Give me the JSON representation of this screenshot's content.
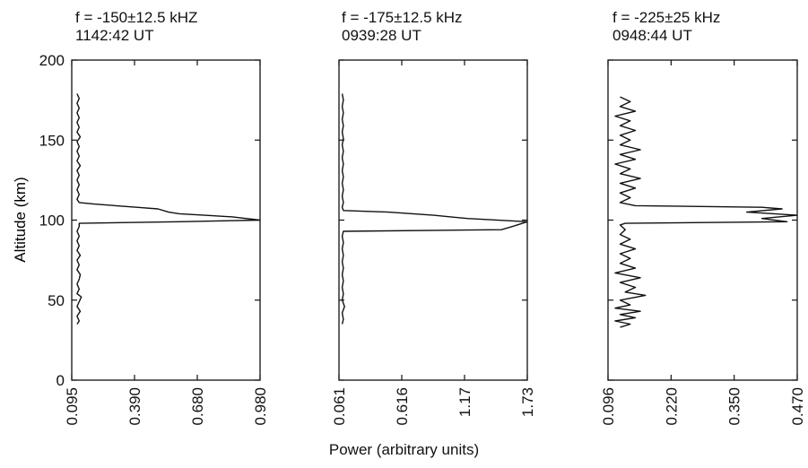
{
  "figure": {
    "ylabel": "Altitude (km)",
    "xlabel": "Power (arbitrary units)"
  },
  "chart_data": [
    {
      "type": "line",
      "title": "f = -150±12.5 kHZ",
      "subtitle": "1142:42 UT",
      "ylabel": "Altitude (km)",
      "xlabel": "Power (arbitrary units)",
      "ylim": [
        0,
        200
      ],
      "yticks": [
        "0",
        "50",
        "100",
        "150",
        "200"
      ],
      "xlim": [
        0.095,
        0.98
      ],
      "xticks": [
        "0.095",
        "0.390",
        "0.680",
        "0.980"
      ],
      "grid": false,
      "series": [
        {
          "points": [
            [
              0.12,
              35
            ],
            [
              0.13,
              37
            ],
            [
              0.12,
              40
            ],
            [
              0.135,
              43
            ],
            [
              0.12,
              46
            ],
            [
              0.13,
              49
            ],
            [
              0.14,
              52
            ],
            [
              0.12,
              54
            ],
            [
              0.13,
              57
            ],
            [
              0.12,
              60
            ],
            [
              0.13,
              63
            ],
            [
              0.135,
              66
            ],
            [
              0.12,
              69
            ],
            [
              0.13,
              72
            ],
            [
              0.12,
              75
            ],
            [
              0.135,
              78
            ],
            [
              0.12,
              81
            ],
            [
              0.13,
              84
            ],
            [
              0.12,
              87
            ],
            [
              0.13,
              90
            ],
            [
              0.12,
              93
            ],
            [
              0.13,
              96
            ],
            [
              0.13,
              98
            ],
            [
              0.6,
              99
            ],
            [
              0.98,
              100
            ],
            [
              0.85,
              102
            ],
            [
              0.72,
              103
            ],
            [
              0.6,
              104
            ],
            [
              0.55,
              105
            ],
            [
              0.5,
              107
            ],
            [
              0.4,
              108
            ],
            [
              0.3,
              109
            ],
            [
              0.2,
              110
            ],
            [
              0.13,
              111
            ],
            [
              0.12,
              113
            ],
            [
              0.13,
              116
            ],
            [
              0.12,
              119
            ],
            [
              0.13,
              122
            ],
            [
              0.12,
              125
            ],
            [
              0.13,
              128
            ],
            [
              0.12,
              131
            ],
            [
              0.135,
              134
            ],
            [
              0.12,
              137
            ],
            [
              0.13,
              140
            ],
            [
              0.12,
              143
            ],
            [
              0.13,
              146
            ],
            [
              0.12,
              149
            ],
            [
              0.135,
              152
            ],
            [
              0.12,
              155
            ],
            [
              0.13,
              158
            ],
            [
              0.12,
              161
            ],
            [
              0.13,
              164
            ],
            [
              0.12,
              167
            ],
            [
              0.13,
              170
            ],
            [
              0.12,
              173
            ],
            [
              0.13,
              176
            ],
            [
              0.12,
              179
            ]
          ]
        }
      ]
    },
    {
      "type": "line",
      "title": "f = -175±12.5 kHz",
      "subtitle": "0939:28 UT",
      "ylim": [
        0,
        200
      ],
      "xlim": [
        0.061,
        1.73
      ],
      "xticks": [
        "0.061",
        "0.616",
        "1.17",
        "1.73"
      ],
      "grid": false,
      "series": [
        {
          "points": [
            [
              0.09,
              35
            ],
            [
              0.1,
              38
            ],
            [
              0.09,
              42
            ],
            [
              0.11,
              46
            ],
            [
              0.09,
              50
            ],
            [
              0.1,
              54
            ],
            [
              0.09,
              58
            ],
            [
              0.1,
              62
            ],
            [
              0.09,
              66
            ],
            [
              0.1,
              70
            ],
            [
              0.09,
              74
            ],
            [
              0.1,
              78
            ],
            [
              0.09,
              82
            ],
            [
              0.1,
              86
            ],
            [
              0.09,
              90
            ],
            [
              0.1,
              93
            ],
            [
              1.5,
              94
            ],
            [
              1.6,
              96
            ],
            [
              1.73,
              99
            ],
            [
              1.2,
              101
            ],
            [
              0.9,
              103
            ],
            [
              0.5,
              105
            ],
            [
              0.1,
              106
            ],
            [
              0.09,
              108
            ],
            [
              0.1,
              111
            ],
            [
              0.09,
              115
            ],
            [
              0.1,
              119
            ],
            [
              0.09,
              123
            ],
            [
              0.1,
              127
            ],
            [
              0.09,
              131
            ],
            [
              0.1,
              135
            ],
            [
              0.09,
              139
            ],
            [
              0.1,
              143
            ],
            [
              0.09,
              147
            ],
            [
              0.1,
              151
            ],
            [
              0.09,
              155
            ],
            [
              0.1,
              159
            ],
            [
              0.09,
              163
            ],
            [
              0.1,
              167
            ],
            [
              0.09,
              171
            ],
            [
              0.1,
              175
            ],
            [
              0.09,
              179
            ]
          ]
        }
      ]
    },
    {
      "type": "line",
      "title": "f = -225±25 kHz",
      "subtitle": "0948:44 UT",
      "ylim": [
        0,
        200
      ],
      "xlim": [
        0.096,
        0.47
      ],
      "xticks": [
        "0.096",
        "0.220",
        "0.350",
        "0.470"
      ],
      "grid": false,
      "series": [
        {
          "points": [
            [
              0.12,
              33
            ],
            [
              0.14,
              35
            ],
            [
              0.11,
              37
            ],
            [
              0.15,
              39
            ],
            [
              0.12,
              41
            ],
            [
              0.16,
              43
            ],
            [
              0.11,
              45
            ],
            [
              0.14,
              47
            ],
            [
              0.12,
              50
            ],
            [
              0.17,
              53
            ],
            [
              0.13,
              55
            ],
            [
              0.15,
              58
            ],
            [
              0.12,
              61
            ],
            [
              0.16,
              64
            ],
            [
              0.11,
              67
            ],
            [
              0.15,
              70
            ],
            [
              0.12,
              73
            ],
            [
              0.14,
              76
            ],
            [
              0.12,
              79
            ],
            [
              0.15,
              82
            ],
            [
              0.12,
              85
            ],
            [
              0.14,
              88
            ],
            [
              0.12,
              91
            ],
            [
              0.13,
              94
            ],
            [
              0.12,
              97
            ],
            [
              0.13,
              98
            ],
            [
              0.45,
              99
            ],
            [
              0.4,
              101
            ],
            [
              0.47,
              103
            ],
            [
              0.37,
              105
            ],
            [
              0.44,
              107
            ],
            [
              0.4,
              108
            ],
            [
              0.15,
              109
            ],
            [
              0.12,
              111
            ],
            [
              0.14,
              114
            ],
            [
              0.12,
              117
            ],
            [
              0.15,
              120
            ],
            [
              0.12,
              123
            ],
            [
              0.16,
              126
            ],
            [
              0.12,
              129
            ],
            [
              0.14,
              132
            ],
            [
              0.11,
              135
            ],
            [
              0.15,
              138
            ],
            [
              0.12,
              141
            ],
            [
              0.16,
              144
            ],
            [
              0.12,
              147
            ],
            [
              0.14,
              150
            ],
            [
              0.12,
              153
            ],
            [
              0.15,
              156
            ],
            [
              0.12,
              159
            ],
            [
              0.14,
              162
            ],
            [
              0.11,
              165
            ],
            [
              0.15,
              168
            ],
            [
              0.12,
              171
            ],
            [
              0.14,
              174
            ],
            [
              0.12,
              177
            ]
          ]
        }
      ]
    }
  ]
}
